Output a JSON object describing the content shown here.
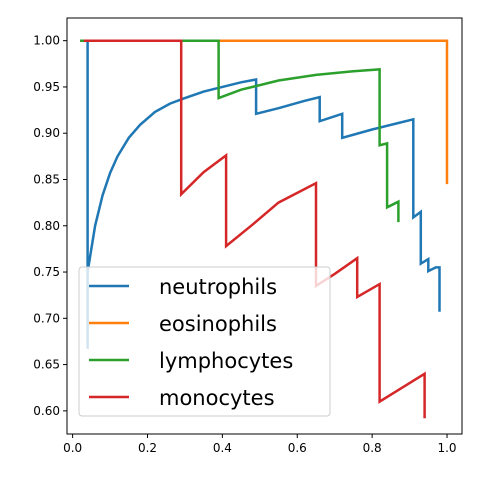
{
  "chart_data": {
    "type": "line",
    "title": "",
    "xlabel": "",
    "ylabel": "",
    "xlim": [
      -0.015,
      1.04
    ],
    "ylim": [
      0.575,
      1.0245
    ],
    "x_ticks": [
      "0.0",
      "0.2",
      "0.4",
      "0.6",
      "0.8",
      "1.0"
    ],
    "y_ticks": [
      "0.60",
      "0.65",
      "0.70",
      "0.75",
      "0.80",
      "0.85",
      "0.90",
      "0.95",
      "1.00"
    ],
    "x_tick_values": [
      0.0,
      0.2,
      0.4,
      0.6,
      0.8,
      1.0
    ],
    "y_tick_values": [
      0.6,
      0.65,
      0.7,
      0.75,
      0.8,
      0.85,
      0.9,
      0.95,
      1.0
    ],
    "grid": false,
    "legend_position": "lower-left",
    "series": [
      {
        "name": "neutrophils",
        "color": "#1f77b4",
        "x": [
          0.04,
          0.04,
          0.04,
          0.06,
          0.08,
          0.1,
          0.12,
          0.15,
          0.18,
          0.22,
          0.26,
          0.3,
          0.35,
          0.4,
          0.45,
          0.49,
          0.49,
          0.55,
          0.62,
          0.66,
          0.66,
          0.72,
          0.72,
          0.8,
          0.87,
          0.91,
          0.91,
          0.93,
          0.93,
          0.95,
          0.95,
          0.97,
          0.98,
          0.98
        ],
        "y": [
          1.0,
          0.667,
          0.75,
          0.8,
          0.833,
          0.857,
          0.875,
          0.895,
          0.909,
          0.923,
          0.932,
          0.938,
          0.945,
          0.95,
          0.955,
          0.958,
          0.921,
          0.927,
          0.935,
          0.939,
          0.913,
          0.921,
          0.895,
          0.904,
          0.911,
          0.915,
          0.809,
          0.815,
          0.759,
          0.764,
          0.751,
          0.755,
          0.755,
          0.707
        ]
      },
      {
        "name": "eosinophils",
        "color": "#ff7f0e",
        "x": [
          0.02,
          1.0,
          1.0
        ],
        "y": [
          1.0,
          1.0,
          0.845
        ]
      },
      {
        "name": "lymphocytes",
        "color": "#2ca02c",
        "x": [
          0.02,
          0.39,
          0.39,
          0.45,
          0.55,
          0.65,
          0.75,
          0.82,
          0.82,
          0.84,
          0.84,
          0.87,
          0.87
        ],
        "y": [
          1.0,
          1.0,
          0.938,
          0.947,
          0.957,
          0.963,
          0.967,
          0.969,
          0.887,
          0.889,
          0.82,
          0.826,
          0.804
        ]
      },
      {
        "name": "monocytes",
        "color": "#d62728",
        "x": [
          0.03,
          0.29,
          0.29,
          0.35,
          0.41,
          0.41,
          0.48,
          0.55,
          0.65,
          0.65,
          0.7,
          0.76,
          0.76,
          0.82,
          0.82,
          0.94,
          0.94
        ],
        "y": [
          1.0,
          1.0,
          0.834,
          0.858,
          0.876,
          0.778,
          0.801,
          0.825,
          0.846,
          0.735,
          0.748,
          0.765,
          0.723,
          0.737,
          0.61,
          0.64,
          0.592
        ]
      }
    ]
  }
}
